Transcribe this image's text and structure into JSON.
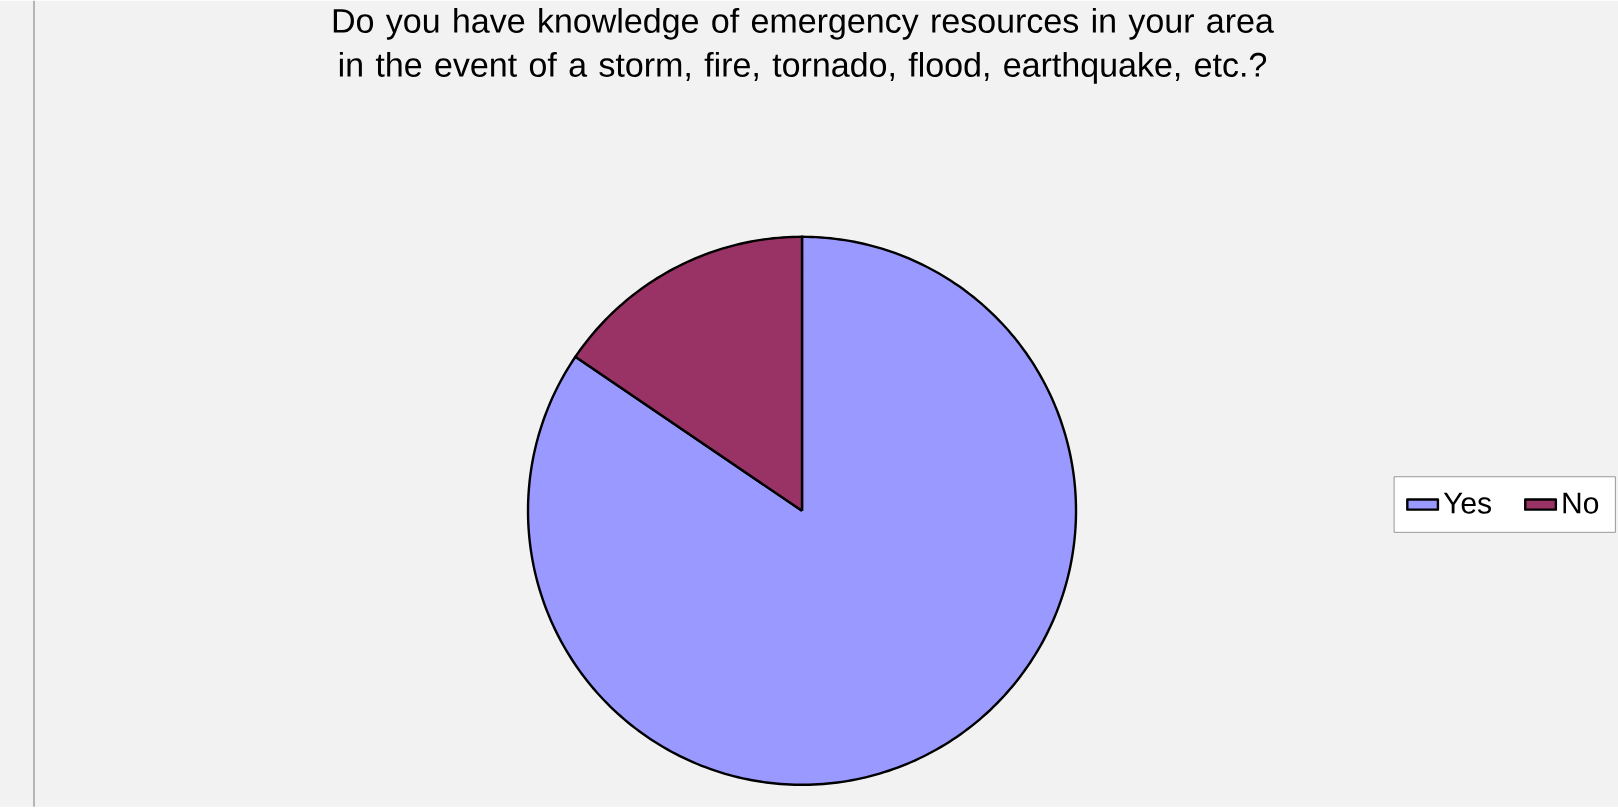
{
  "chart_data": {
    "type": "pie",
    "title": "Do you have knowledge of emergency resources in your area in the event of a storm, fire, tornado, flood, earthquake, etc.?",
    "categories": [
      "Yes",
      "No"
    ],
    "values": [
      84.5,
      15.5
    ],
    "colors": [
      "#9999ff",
      "#993366"
    ],
    "legend": "right"
  }
}
